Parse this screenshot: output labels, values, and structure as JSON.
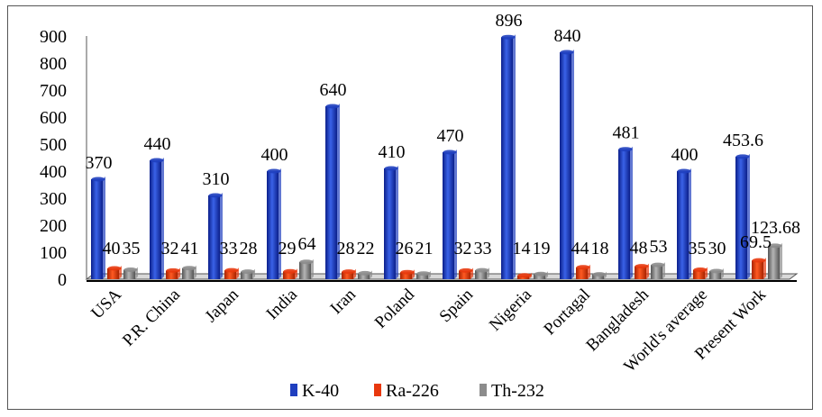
{
  "chart_data": {
    "type": "bar",
    "categories": [
      "USA",
      "P.R. China",
      "Japan",
      "India",
      "Iran",
      "Poland",
      "Spain",
      "Nigeria",
      "Portagal",
      "Bangladesh",
      "World's average",
      "Present Work"
    ],
    "series": [
      {
        "name": "K-40",
        "color": "#1f3fbf",
        "values": [
          370,
          440,
          310,
          400,
          640,
          410,
          470,
          896,
          840,
          481,
          400,
          453.6
        ],
        "labels": [
          "370",
          "440",
          "310",
          "400",
          "640",
          "410",
          "470",
          "896",
          "840",
          "481",
          "400",
          "453.6"
        ]
      },
      {
        "name": "Ra-226",
        "color": "#e8380d",
        "values": [
          40,
          32,
          33,
          29,
          28,
          26,
          32,
          14,
          44,
          48,
          35,
          69.5
        ],
        "labels": [
          "40",
          "32",
          "33",
          "29",
          "28",
          "26",
          "32",
          "14",
          "44",
          "48",
          "35",
          "69.5"
        ]
      },
      {
        "name": "Th-232",
        "color": "#8c8c8c",
        "values": [
          35,
          41,
          28,
          64,
          22,
          21,
          33,
          19,
          18,
          53,
          30,
          123.68
        ],
        "labels": [
          "35",
          "41",
          "28",
          "64",
          "22",
          "21",
          "33",
          "19",
          "18",
          "53",
          "30",
          "123.68"
        ]
      }
    ],
    "yticks": [
      "0",
      "100",
      "200",
      "300",
      "400",
      "500",
      "600",
      "700",
      "800",
      "900"
    ],
    "ylim": [
      0,
      900
    ],
    "grid": false,
    "legend_position": "bottom"
  }
}
